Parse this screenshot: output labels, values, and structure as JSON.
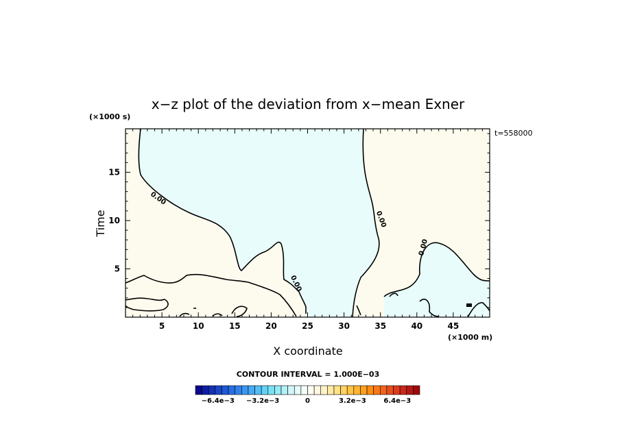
{
  "chart_data": {
    "type": "contour",
    "title": "x−z plot of the deviation from x−mean Exner",
    "xlabel": "X coordinate",
    "ylabel": "Time",
    "x_unit": "(×1000 m)",
    "y_unit": "(×1000 s)",
    "time_stamp": "t=558000",
    "xlim": [
      0,
      50
    ],
    "ylim": [
      0,
      19.5
    ],
    "x_ticks": [
      5,
      10,
      15,
      20,
      25,
      30,
      35,
      40,
      45
    ],
    "y_ticks": [
      5,
      10,
      15
    ],
    "contour_interval_text": "CONTOUR INTERVAL = 1.000E−03",
    "contour_labels": [
      "0.00",
      "0.00",
      "0.00",
      "0.00"
    ],
    "colorbar": {
      "min": -0.008,
      "max": 0.008,
      "tick_values": [
        -0.0064,
        -0.0032,
        0,
        0.0032,
        0.0064
      ],
      "tick_labels": [
        "−6.4e−3",
        "−3.2e−3",
        "0",
        "3.2e−3",
        "6.4e−3"
      ],
      "colors": [
        "#0a0a8c",
        "#0f1ea0",
        "#1430b4",
        "#1946c8",
        "#1e5ad7",
        "#2870e1",
        "#3282eb",
        "#3c96f0",
        "#46aaf5",
        "#55bef5",
        "#64d2f5",
        "#78e1f5",
        "#96ebf5",
        "#b4f0f5",
        "#d2f5f8",
        "#e6fafa",
        "#f5fcfc",
        "#fffdf3",
        "#fff8e0",
        "#fff3c8",
        "#ffeba5",
        "#ffe187",
        "#ffd264",
        "#ffc346",
        "#ffb432",
        "#ffa01e",
        "#ff8c14",
        "#fa7814",
        "#f0641e",
        "#e6501e",
        "#dc3c1e",
        "#c8281e",
        "#b41914",
        "#a00a0a"
      ]
    },
    "regions": {
      "negative_color": "#e8fcfc",
      "positive_color": "#fdfbee"
    }
  }
}
